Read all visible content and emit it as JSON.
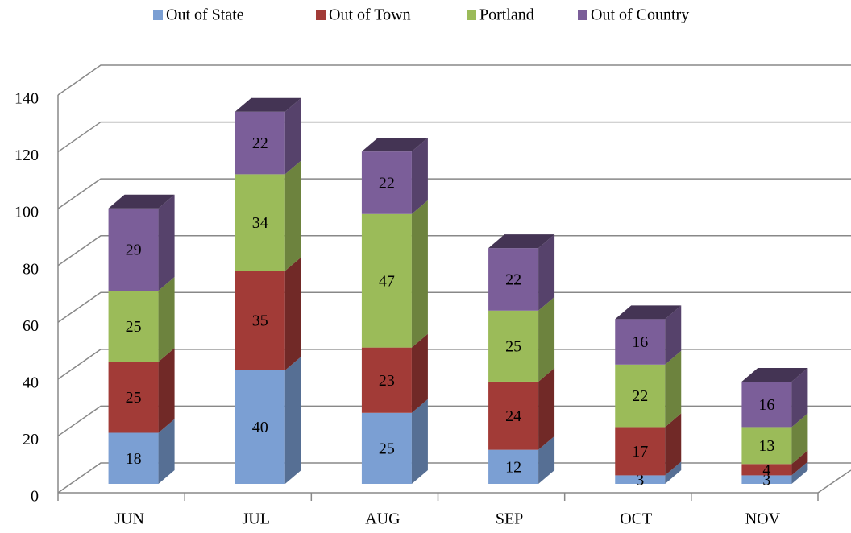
{
  "chart_data": {
    "type": "bar3d_stacked",
    "categories": [
      "JUN",
      "JUL",
      "AUG",
      "SEP",
      "OCT",
      "NOV"
    ],
    "series": [
      {
        "name": "Out of State",
        "color": "#7b9fd3",
        "values": [
          18,
          40,
          25,
          12,
          3,
          3
        ]
      },
      {
        "name": "Out of Town",
        "color": "#a23b37",
        "values": [
          25,
          35,
          23,
          24,
          17,
          4
        ]
      },
      {
        "name": "Portland",
        "color": "#9bbb59",
        "values": [
          25,
          34,
          47,
          25,
          22,
          13
        ]
      },
      {
        "name": "Out of Country",
        "color": "#7b5e99",
        "values": [
          29,
          22,
          22,
          22,
          16,
          16
        ]
      }
    ],
    "ylim": [
      0,
      140
    ],
    "yticks": [
      0,
      20,
      40,
      60,
      80,
      100,
      120,
      140
    ],
    "grid": true,
    "legend": "top"
  }
}
